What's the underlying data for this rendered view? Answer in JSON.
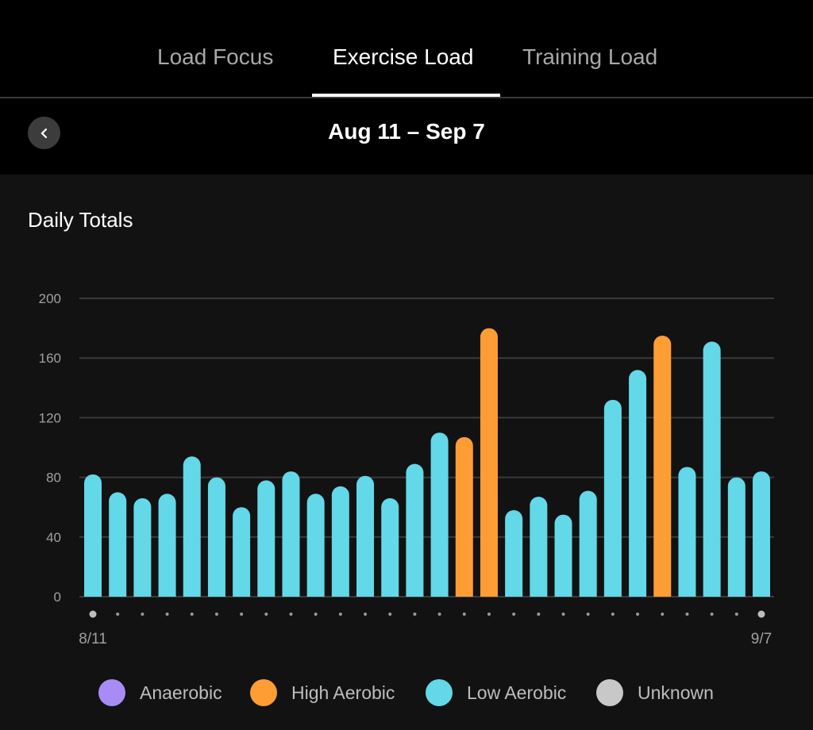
{
  "tabs": [
    {
      "label": "Load Focus"
    },
    {
      "label": "Exercise Load"
    },
    {
      "label": "Training Load"
    }
  ],
  "date_range": "Aug 11 – Sep 7",
  "panel_title": "Daily Totals",
  "colors": {
    "low_aerobic": "#62d8e8",
    "high_aerobic": "#ff9d35",
    "anaerobic": "#a98bf5",
    "unknown": "#c8c8c8"
  },
  "legend": [
    {
      "label": "Anaerobic",
      "color": "#a98bf5"
    },
    {
      "label": "High Aerobic",
      "color": "#ff9d35"
    },
    {
      "label": "Low Aerobic",
      "color": "#62d8e8"
    },
    {
      "label": "Unknown",
      "color": "#c8c8c8"
    }
  ],
  "chart_data": {
    "type": "bar",
    "title": "Daily Totals",
    "ylim": [
      0,
      200
    ],
    "yticks": [
      "0",
      "40",
      "80",
      "120",
      "160",
      "200"
    ],
    "x_start_label": "8/11",
    "x_end_label": "9/7",
    "grid": true,
    "legend_position": "bottom",
    "values": [
      82,
      70,
      66,
      69,
      94,
      80,
      60,
      78,
      84,
      69,
      74,
      81,
      66,
      89,
      110,
      107,
      180,
      58,
      67,
      55,
      71,
      132,
      152,
      175,
      87,
      171,
      80,
      84
    ],
    "types": [
      "low",
      "low",
      "low",
      "low",
      "low",
      "low",
      "low",
      "low",
      "low",
      "low",
      "low",
      "low",
      "low",
      "low",
      "low",
      "high",
      "high",
      "low",
      "low",
      "low",
      "low",
      "low",
      "low",
      "high",
      "low",
      "low",
      "low",
      "low"
    ]
  }
}
